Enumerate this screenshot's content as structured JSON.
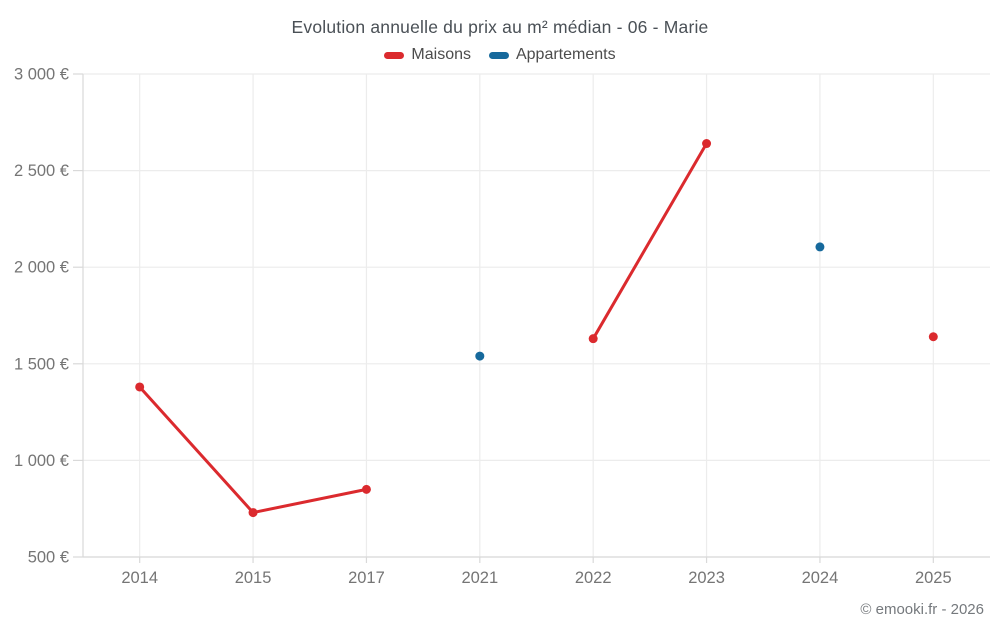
{
  "chart_data": {
    "type": "line",
    "title": "Evolution annuelle du prix au m² médian - 06 - Marie",
    "categories": [
      "2014",
      "2015",
      "2017",
      "2021",
      "2022",
      "2023",
      "2024",
      "2025"
    ],
    "series": [
      {
        "name": "Maisons",
        "color": "#db2a2e",
        "values": [
          1380,
          730,
          850,
          null,
          1630,
          2640,
          null,
          1640
        ]
      },
      {
        "name": "Appartements",
        "color": "#16699c",
        "values": [
          null,
          null,
          null,
          1540,
          null,
          null,
          2105,
          null
        ]
      }
    ],
    "ylim": [
      500,
      3000
    ],
    "y_ticks": [
      {
        "value": 500,
        "label": "500 €"
      },
      {
        "value": 1000,
        "label": "1 000 €"
      },
      {
        "value": 1500,
        "label": "1 500 €"
      },
      {
        "value": 2000,
        "label": "2 000 €"
      },
      {
        "value": 2500,
        "label": "2 500 €"
      },
      {
        "value": 3000,
        "label": "3 000 €"
      }
    ],
    "grid": true,
    "legend_position": "top",
    "colors": {
      "grid": "#ececec",
      "axis": "#d9d9d9",
      "tick_text": "#757575",
      "title_text": "#4a5056",
      "legend_text": "#4c4c4c",
      "footer_text": "#75797d"
    }
  },
  "footer": {
    "credit": "© emooki.fr - 2026"
  }
}
